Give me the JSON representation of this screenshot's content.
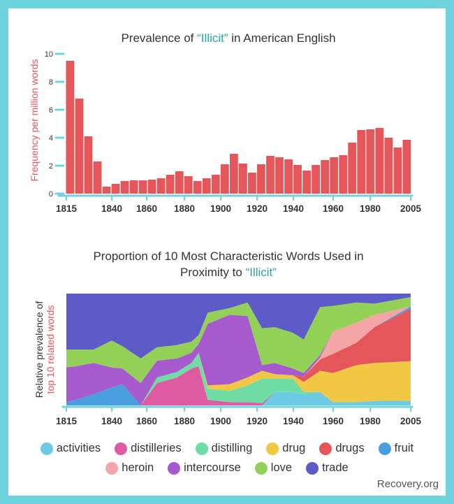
{
  "source_label": "Recovery.org",
  "colors": {
    "accent": "#2aa69a",
    "bar": "#e5565a",
    "axis": "#6ed3dc",
    "ylabel_highlight": "#e5565a"
  },
  "chart_data": [
    {
      "type": "bar",
      "title_before": "Prevalence of ",
      "title_highlight": "“Illicit”",
      "title_after": " in American English",
      "ylabel": "Frequency per million words",
      "ylim": [
        0,
        10
      ],
      "yticks": [
        "0",
        "2",
        "4",
        "6",
        "8",
        "10"
      ],
      "xticks": [
        "1815",
        "1840",
        "1860",
        "1880",
        "1900",
        "1920",
        "1940",
        "1960",
        "1980",
        "2005"
      ],
      "values": [
        9.5,
        6.8,
        4.1,
        2.3,
        0.5,
        0.7,
        0.9,
        0.95,
        0.95,
        1.0,
        1.1,
        1.35,
        1.6,
        1.25,
        0.9,
        1.1,
        1.35,
        2.1,
        2.85,
        2.15,
        1.5,
        2.1,
        2.7,
        2.6,
        2.45,
        2.05,
        1.65,
        2.05,
        2.4,
        2.6,
        2.75,
        3.65,
        4.55,
        4.6,
        4.7,
        4.0,
        3.3,
        3.85
      ]
    },
    {
      "type": "area",
      "title_line1": "Proportion of 10 Most Characteristic Words Used in",
      "title_line2_before": "Proximity to ",
      "title_line2_highlight": "“Illicit”",
      "ylabel_line1": "Relative prevalence of",
      "ylabel_line2": "top 10 related words",
      "xticks": [
        "1815",
        "1840",
        "1860",
        "1880",
        "1900",
        "1920",
        "1940",
        "1960",
        "1980",
        "2005"
      ],
      "x": [
        1815,
        1820,
        1830,
        1840,
        1846,
        1856,
        1865,
        1876,
        1884,
        1888,
        1893,
        1905,
        1915,
        1923,
        1930,
        1940,
        1946,
        1955,
        1962,
        1975,
        1985,
        2005
      ],
      "series": [
        {
          "name": "activities",
          "color": "#6ec9e2",
          "values": [
            0,
            0,
            0,
            0,
            0,
            0,
            0,
            0,
            0,
            0,
            0,
            0,
            0,
            0,
            0.12,
            0.12,
            0.1,
            0.12,
            0.03,
            0.03,
            0.04,
            0.04
          ]
        },
        {
          "name": "distilleries",
          "color": "#de5ba3",
          "values": [
            0,
            0,
            0,
            0,
            0,
            0,
            0.2,
            0.25,
            0.33,
            0.35,
            0.05,
            0.03,
            0.03,
            0.02,
            0,
            0,
            0,
            0,
            0,
            0,
            0,
            0
          ]
        },
        {
          "name": "distilling",
          "color": "#6fdca4",
          "values": [
            0,
            0,
            0,
            0,
            0,
            0,
            0.05,
            0.05,
            0.05,
            0.12,
            0.1,
            0.1,
            0.15,
            0.22,
            0.12,
            0.12,
            0.02,
            0,
            0,
            0,
            0,
            0
          ]
        },
        {
          "name": "drug",
          "color": "#f2c744",
          "values": [
            0,
            0,
            0,
            0,
            0,
            0,
            0,
            0,
            0,
            0,
            0.03,
            0.06,
            0.07,
            0.07,
            0.04,
            0.03,
            0.09,
            0.19,
            0.26,
            0.33,
            0.34,
            0.34
          ]
        },
        {
          "name": "drugs",
          "color": "#e5565a",
          "values": [
            0,
            0,
            0,
            0,
            0,
            0,
            0,
            0,
            0,
            0,
            0,
            0,
            0,
            0,
            0,
            0,
            0.05,
            0.1,
            0.17,
            0.2,
            0.32,
            0.45
          ]
        },
        {
          "name": "fruit",
          "color": "#4a9ede",
          "values": [
            0.03,
            0.05,
            0.1,
            0.16,
            0.19,
            0,
            0,
            0,
            0,
            0,
            0,
            0,
            0,
            0,
            0,
            0,
            0,
            0,
            0,
            0,
            0,
            0.02
          ]
        },
        {
          "name": "heroin",
          "color": "#f4a5a5",
          "values": [
            0,
            0,
            0,
            0,
            0,
            0,
            0,
            0,
            0,
            0,
            0,
            0,
            0,
            0,
            0,
            0,
            0,
            0.02,
            0.2,
            0.18,
            0.11,
            0
          ]
        },
        {
          "name": "intercourse",
          "color": "#a65acd",
          "values": [
            0.31,
            0.3,
            0.28,
            0.18,
            0.14,
            0.2,
            0.15,
            0.12,
            0.09,
            0.08,
            0.55,
            0.62,
            0.55,
            0.05,
            0.1,
            0.06,
            0.03,
            0.02,
            0,
            0,
            0,
            0
          ]
        },
        {
          "name": "love",
          "color": "#92d057",
          "values": [
            0.16,
            0.15,
            0.12,
            0.24,
            0.2,
            0.22,
            0.12,
            0.12,
            0.1,
            0.08,
            0.1,
            0.06,
            0.12,
            0.33,
            0.32,
            0.32,
            0.3,
            0.43,
            0.23,
            0.18,
            0.1,
            0.08
          ]
        },
        {
          "name": "trade",
          "color": "#5c5bc8",
          "values": [
            0.5,
            0.5,
            0.5,
            0.42,
            0.47,
            0.58,
            0.48,
            0.46,
            0.43,
            0.37,
            0.17,
            0.13,
            0.08,
            0.31,
            0.3,
            0.35,
            0.41,
            0.12,
            0.11,
            0.08,
            0.09,
            0.03
          ]
        }
      ]
    }
  ]
}
